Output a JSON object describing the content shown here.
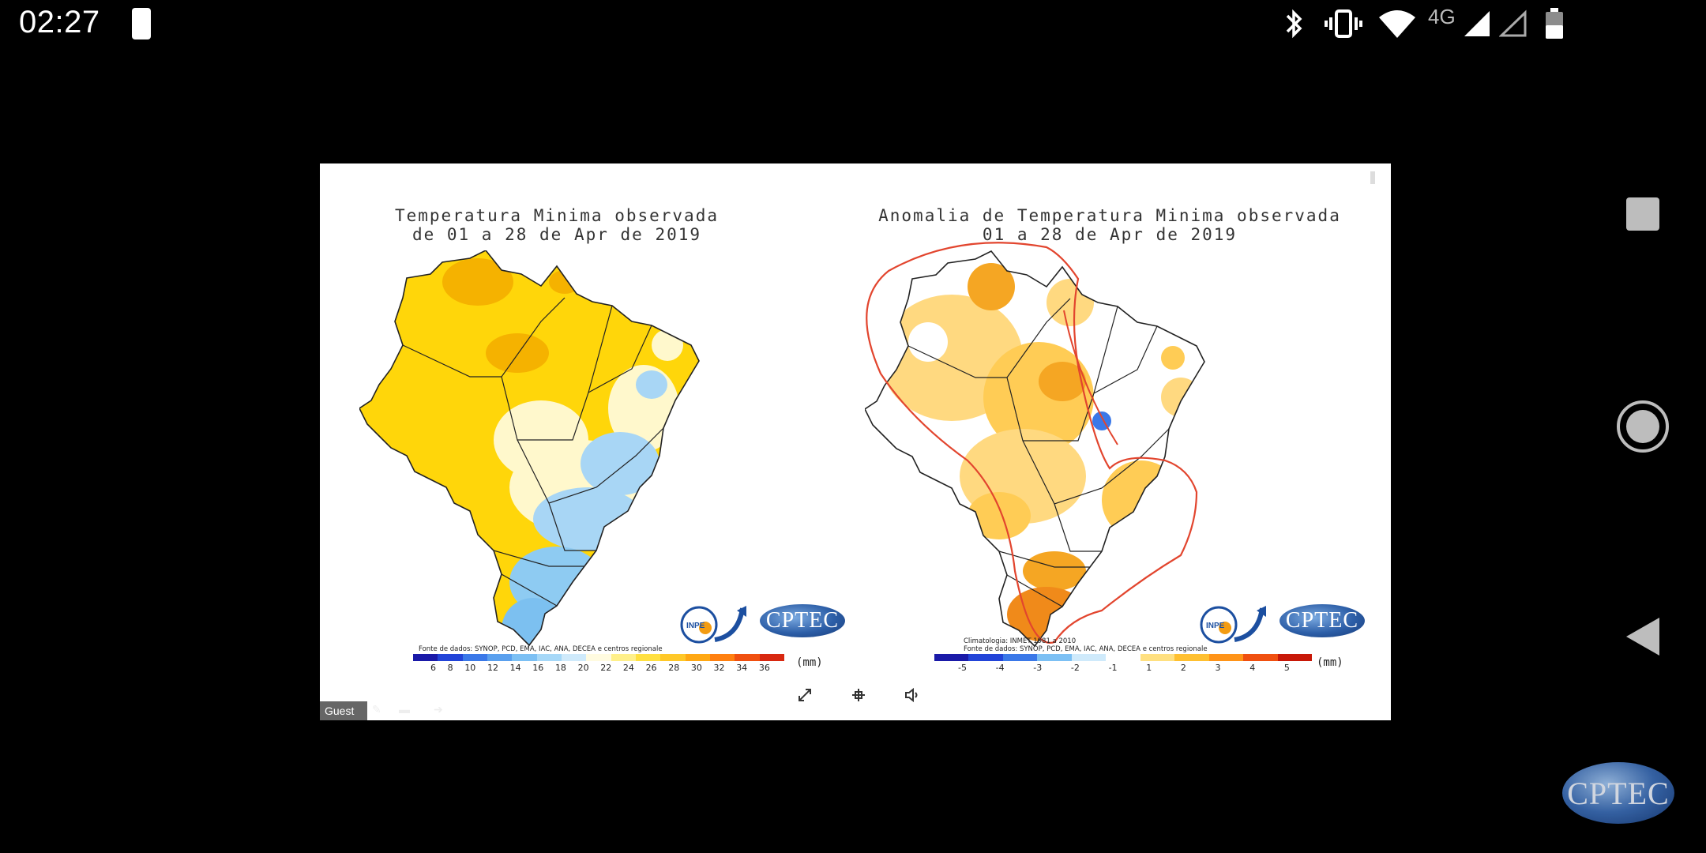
{
  "status_bar": {
    "time": "02:27",
    "network": "4G",
    "icons": [
      "moon-icon",
      "bluetooth-icon",
      "vibrate-icon",
      "wifi-icon",
      "signal-icon",
      "signal-empty-icon",
      "battery-icon"
    ]
  },
  "nav_bar": {
    "buttons": [
      "recents-square-icon",
      "home-circle-icon",
      "back-triangle-icon"
    ]
  },
  "slide": {
    "left_map": {
      "title_line1": "Temperatura Minima observada",
      "title_line2": "de 01 a 28 de Apr de 2019",
      "source": "Fonte de dados: SYNOP, PCD, EMA, IAC, ANA, DECEA e centros regionale",
      "legend_ticks": [
        "6",
        "8",
        "10",
        "12",
        "14",
        "16",
        "18",
        "20",
        "22",
        "24",
        "26",
        "28",
        "30",
        "32",
        "34",
        "36"
      ],
      "legend_colors": [
        "#1a1aa8",
        "#2244d8",
        "#3a78e8",
        "#5aa0ee",
        "#7cc0f4",
        "#a6d8f8",
        "#cfeafb",
        "#fffbe0",
        "#fff08a",
        "#ffe040",
        "#ffc828",
        "#ffa814",
        "#ff8010",
        "#f05010",
        "#d82810"
      ],
      "unit": "(mm)",
      "inpe_logo_text": "INPE",
      "cptec_logo_text": "CPTEC"
    },
    "right_map": {
      "title_line1": "Anomalia de Temperatura Minima observada",
      "title_line2": "01 a 28 de Apr de 2019",
      "climatology": "Climatologia: INMET 1981 a 2010",
      "source": "Fonte de dados: SYNOP, PCD, EMA, IAC, ANA, DECEA e centros regionale",
      "legend_ticks": [
        "-5",
        "-4",
        "-3",
        "-2",
        "-1",
        "1",
        "2",
        "3",
        "4",
        "5"
      ],
      "legend_colors": [
        "#1a1aa8",
        "#2244d8",
        "#3a78e8",
        "#7cc0f4",
        "#cfeafb",
        "#ffffff",
        "#ffe080",
        "#ffc030",
        "#ff9418",
        "#f05010",
        "#c81808"
      ],
      "unit": "(mm)",
      "inpe_logo_text": "INPE",
      "cptec_logo_text": "CPTEC"
    },
    "guest_label": "Guest",
    "controls": [
      "expand-icon",
      "fit-icon",
      "audio-icon"
    ]
  },
  "watermark": "CPTEC"
}
